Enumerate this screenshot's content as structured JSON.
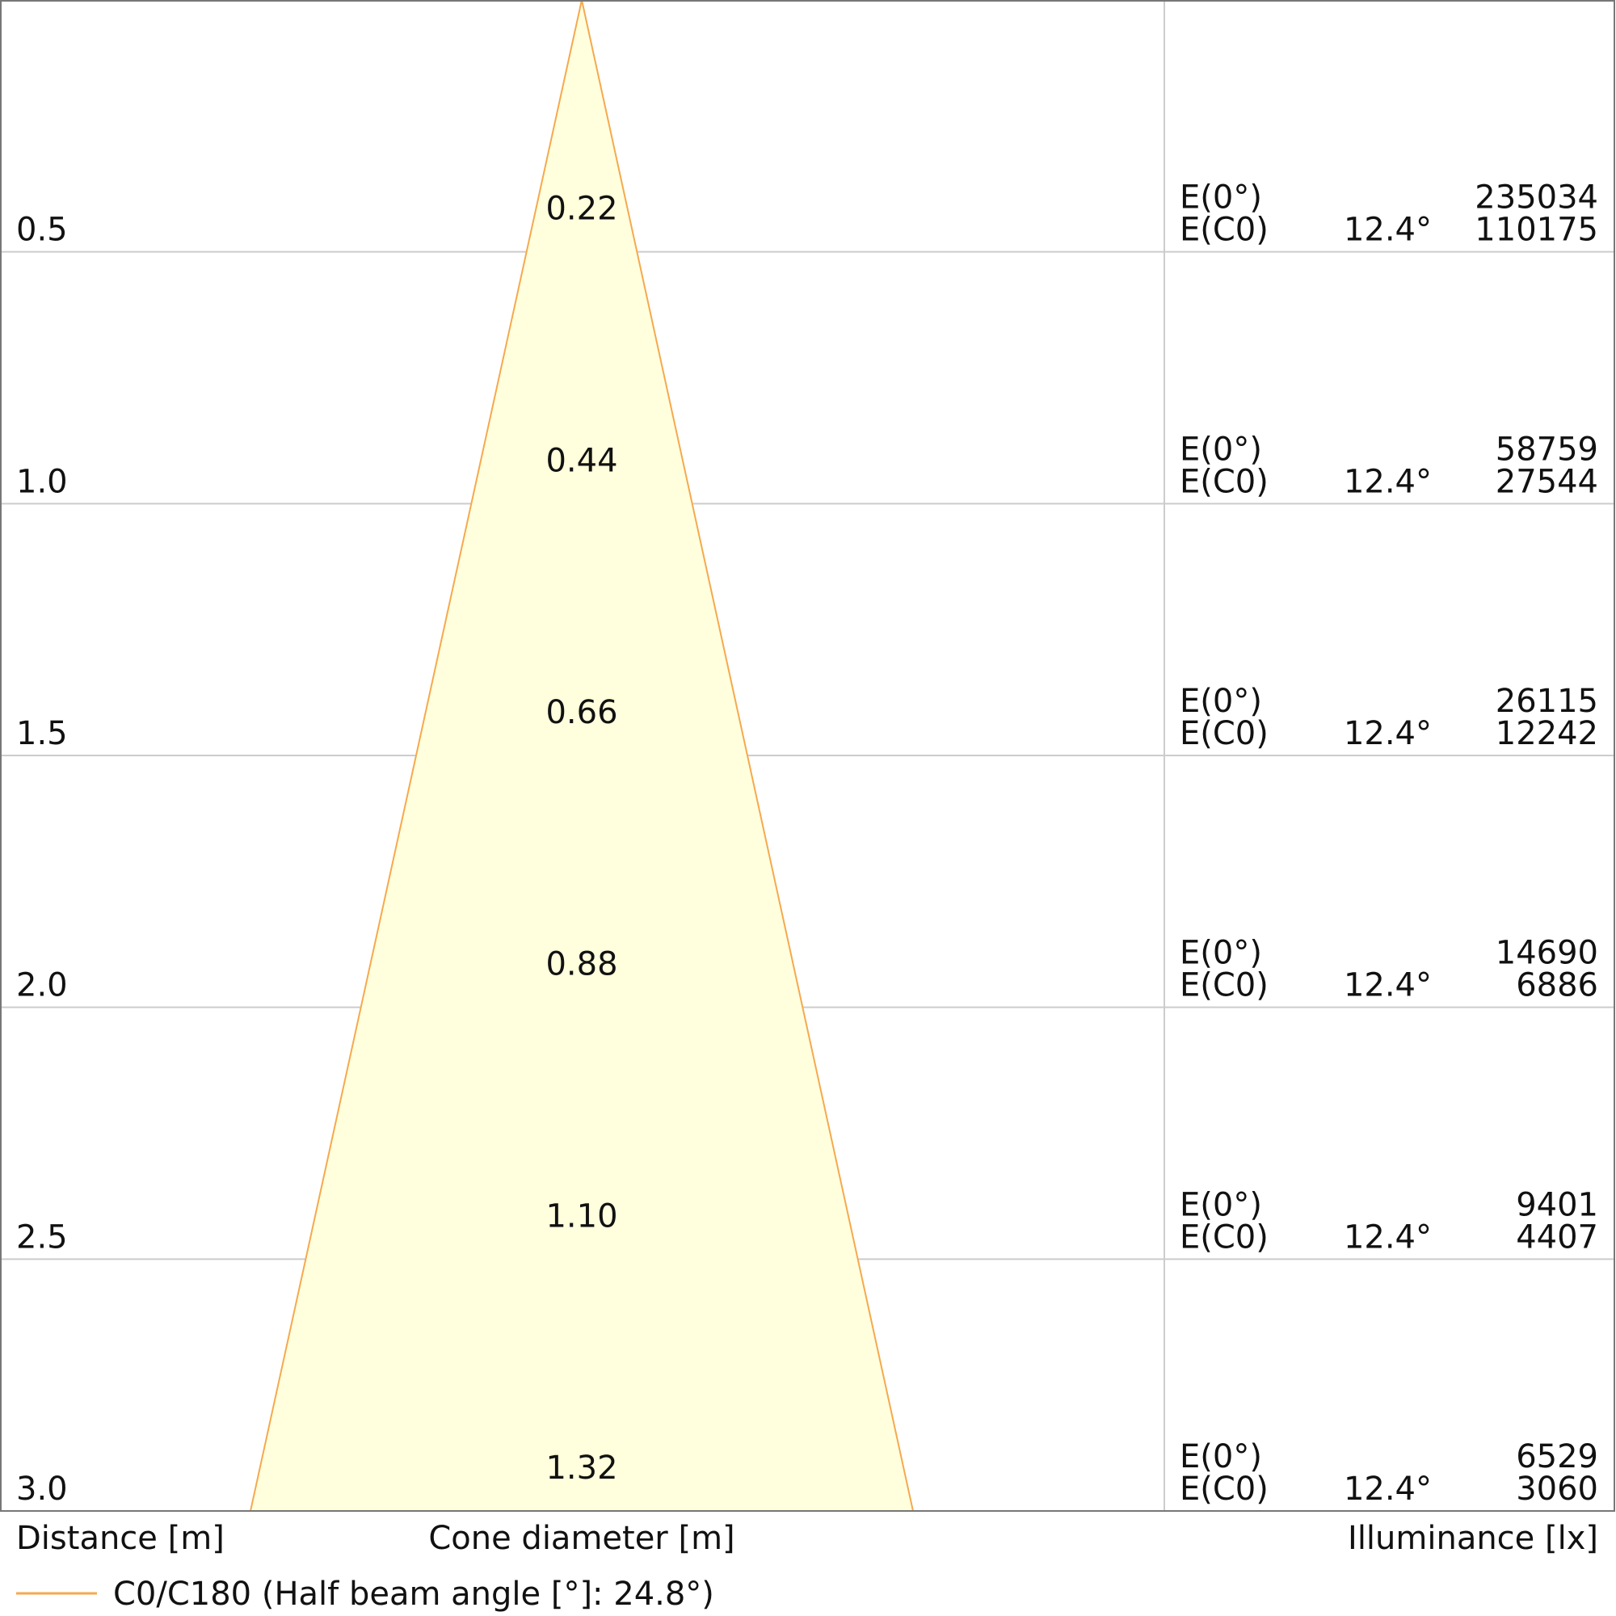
{
  "chart_data": {
    "type": "cone-diagram",
    "colors": {
      "cone_fill": "#FFFFDD",
      "cone_stroke": "#F5A94E",
      "grid": "#CCCCCC",
      "frame": "#777777",
      "text": "#111111"
    },
    "axis_labels": {
      "distance": "Distance [m]",
      "diameter": "Cone diameter [m]",
      "illuminance": "Illuminance [lx]"
    },
    "legend": {
      "label": "C0/C180 (Half beam angle [°]: 24.8°)"
    },
    "row_labels": {
      "center": "E(0°)",
      "c0": "E(C0)"
    },
    "rows": [
      {
        "distance": "0.5",
        "diameter": "0.22",
        "angle": "12.4°",
        "e_center": "235034",
        "e_c0": "110175"
      },
      {
        "distance": "1.0",
        "diameter": "0.44",
        "angle": "12.4°",
        "e_center": "58759",
        "e_c0": "27544"
      },
      {
        "distance": "1.5",
        "diameter": "0.66",
        "angle": "12.4°",
        "e_center": "26115",
        "e_c0": "12242"
      },
      {
        "distance": "2.0",
        "diameter": "0.88",
        "angle": "12.4°",
        "e_center": "14690",
        "e_c0": "6886"
      },
      {
        "distance": "2.5",
        "diameter": "1.10",
        "angle": "12.4°",
        "e_center": "9401",
        "e_c0": "4407"
      },
      {
        "distance": "3.0",
        "diameter": "1.32",
        "angle": "12.4°",
        "e_center": "6529",
        "e_c0": "3060"
      }
    ]
  }
}
